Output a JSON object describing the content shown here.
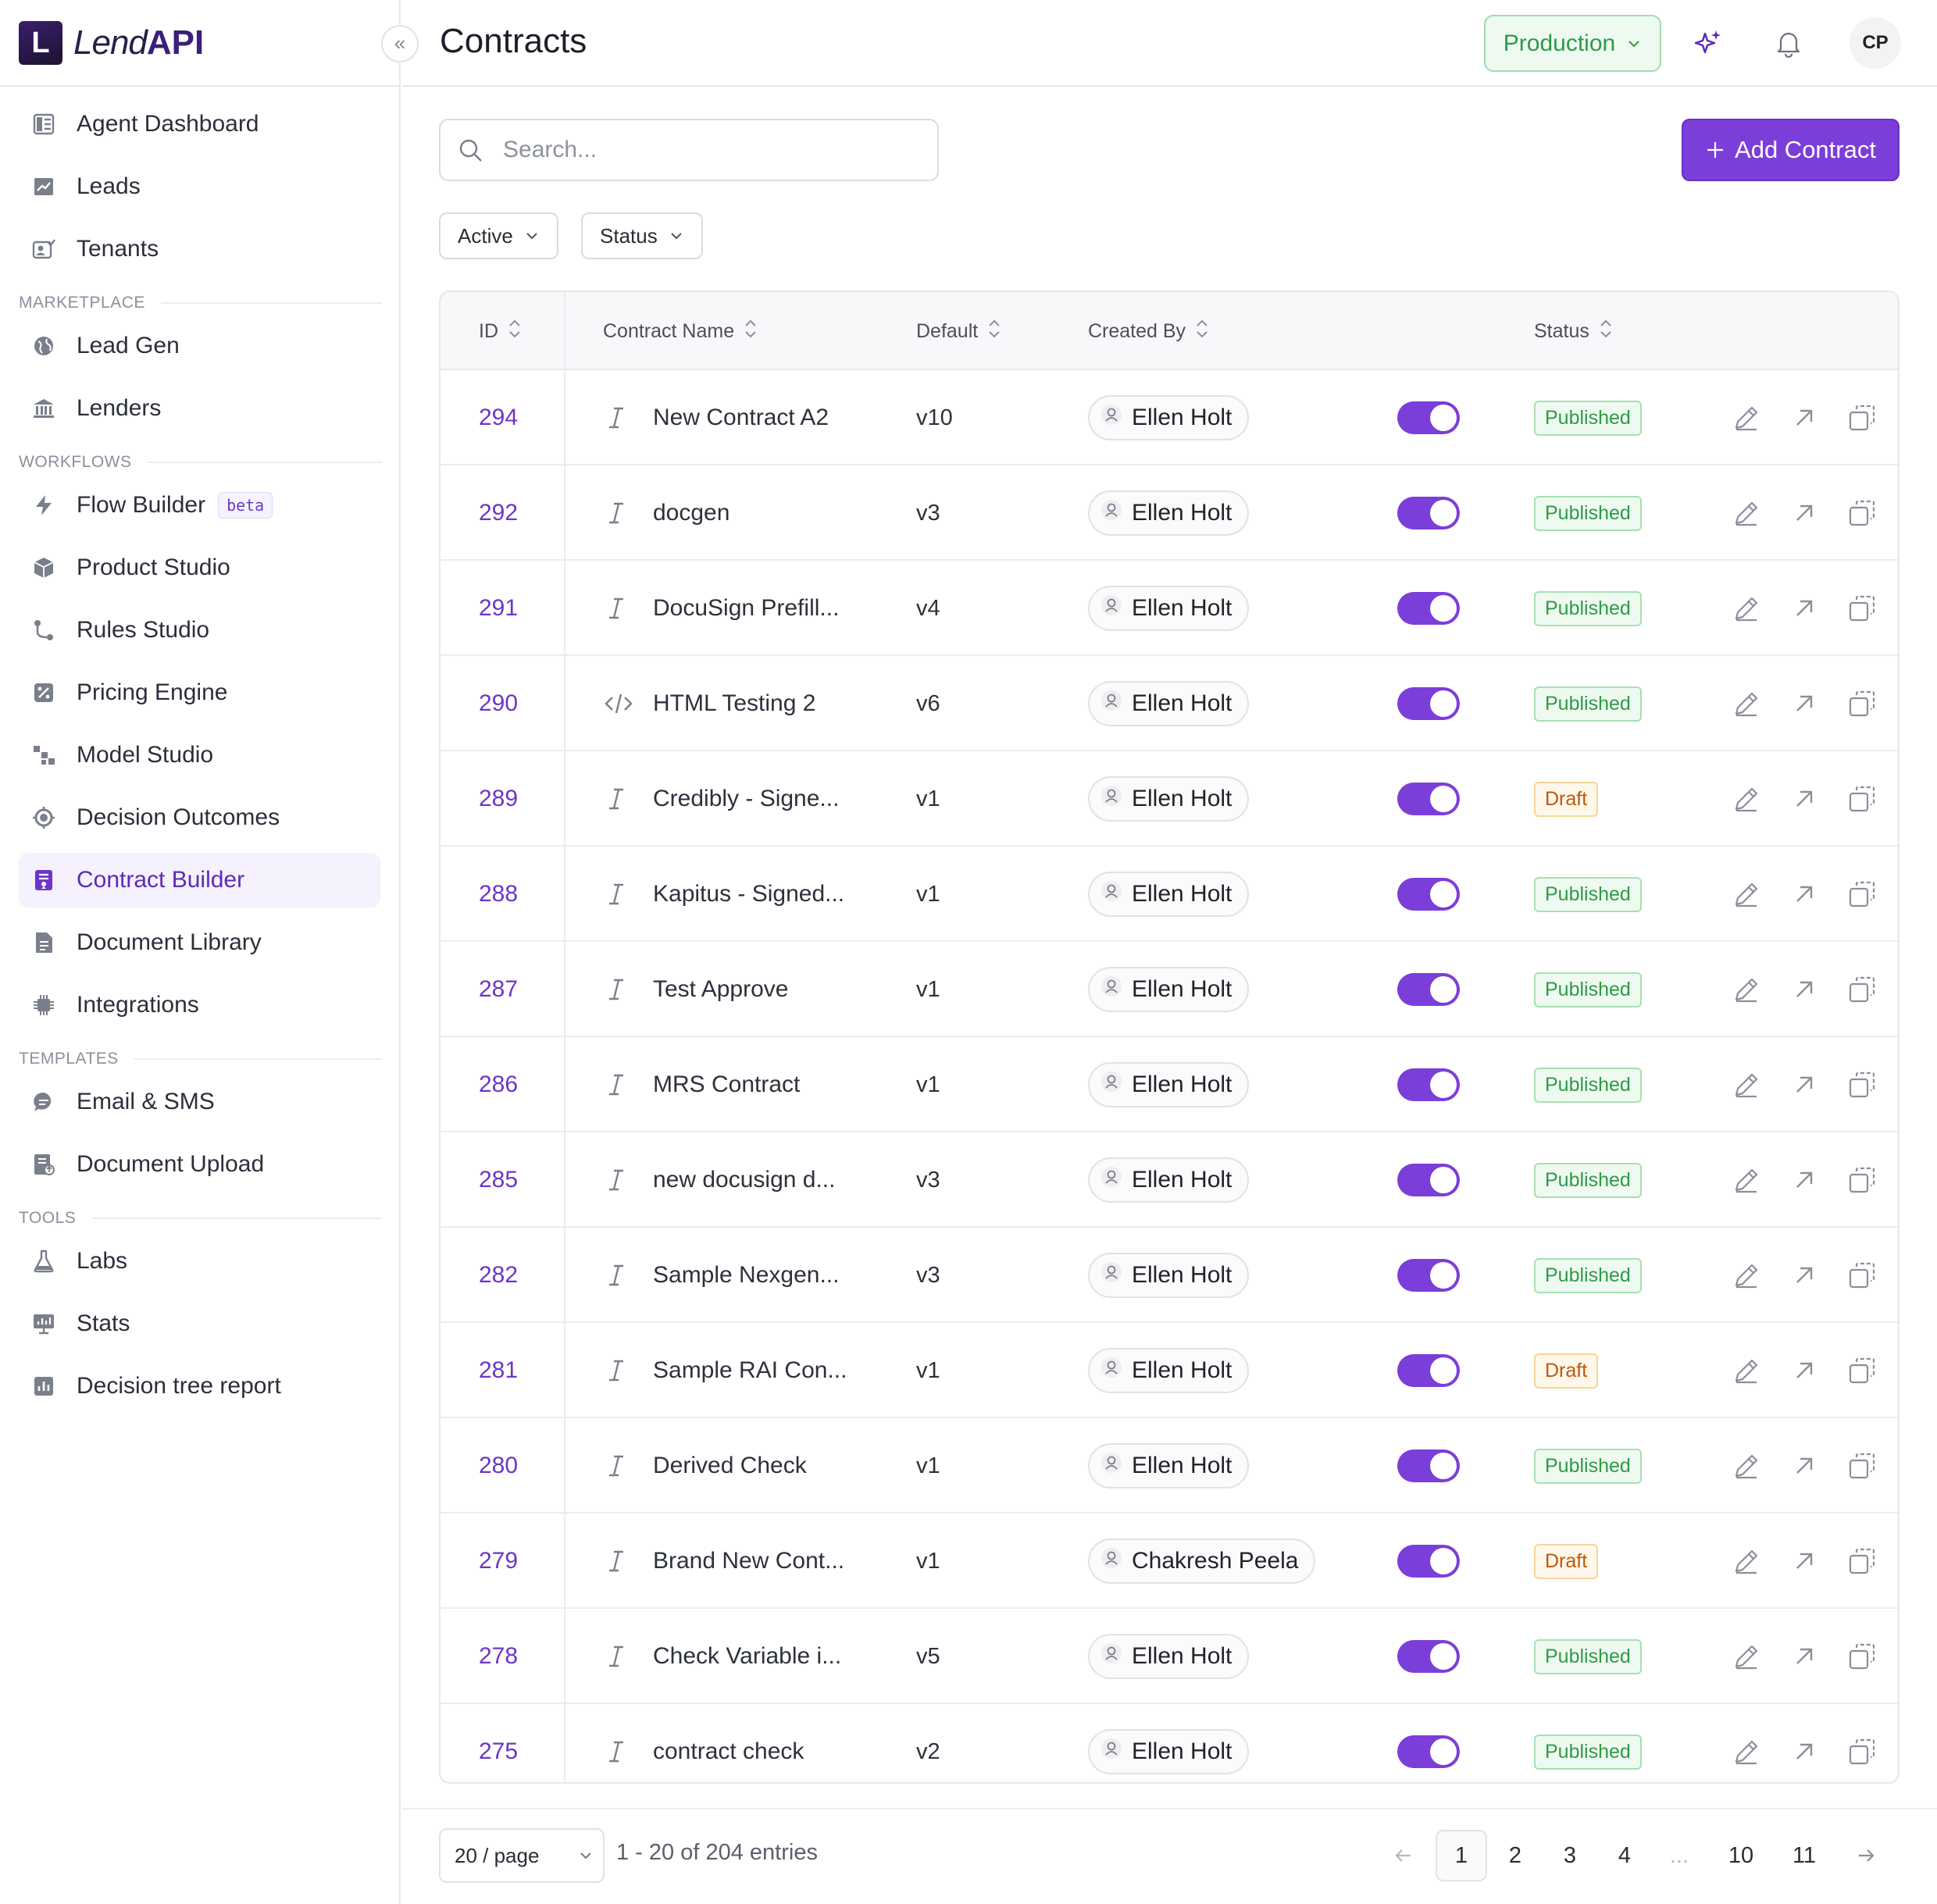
{
  "brand": {
    "logo_letter": "L",
    "name_part1": "Lend",
    "name_part2": "API"
  },
  "sidebar": {
    "top_items": [
      {
        "label": "Agent Dashboard",
        "icon": "dashboard-icon"
      },
      {
        "label": "Leads",
        "icon": "leads-chart-icon"
      },
      {
        "label": "Tenants",
        "icon": "tenants-icon"
      }
    ],
    "sections": [
      {
        "label": "MARKETPLACE",
        "items": [
          {
            "label": "Lead Gen",
            "icon": "globe-icon"
          },
          {
            "label": "Lenders",
            "icon": "bank-icon"
          }
        ]
      },
      {
        "label": "WORKFLOWS",
        "items": [
          {
            "label": "Flow Builder",
            "icon": "lightning-icon",
            "badge": "beta"
          },
          {
            "label": "Product Studio",
            "icon": "box-icon"
          },
          {
            "label": "Rules Studio",
            "icon": "branch-icon"
          },
          {
            "label": "Pricing Engine",
            "icon": "percent-icon"
          },
          {
            "label": "Model Studio",
            "icon": "model-icon"
          },
          {
            "label": "Decision Outcomes",
            "icon": "target-icon"
          },
          {
            "label": "Contract Builder",
            "icon": "contract-icon",
            "active": true
          },
          {
            "label": "Document Library",
            "icon": "document-icon"
          },
          {
            "label": "Integrations",
            "icon": "chip-icon"
          }
        ]
      },
      {
        "label": "TEMPLATES",
        "items": [
          {
            "label": "Email & SMS",
            "icon": "chat-icon"
          },
          {
            "label": "Document Upload",
            "icon": "upload-doc-icon"
          }
        ]
      },
      {
        "label": "TOOLS",
        "items": [
          {
            "label": "Labs",
            "icon": "flask-icon"
          },
          {
            "label": "Stats",
            "icon": "stats-icon"
          },
          {
            "label": "Decision tree report",
            "icon": "report-icon"
          }
        ]
      }
    ]
  },
  "header": {
    "title": "Contracts",
    "environment": "Production",
    "avatar_initials": "CP"
  },
  "toolbar": {
    "search_placeholder": "Search...",
    "add_label": "Add Contract",
    "filters": [
      "Active",
      "Status"
    ]
  },
  "table": {
    "columns": [
      "ID",
      "Contract Name",
      "Default",
      "Created By",
      "Status"
    ],
    "rows": [
      {
        "id": "294",
        "type": "text",
        "name": "New Contract A2",
        "default": "v10",
        "created_by": "Ellen Holt",
        "enabled": true,
        "status": "Published"
      },
      {
        "id": "292",
        "type": "text",
        "name": "docgen",
        "default": "v3",
        "created_by": "Ellen Holt",
        "enabled": true,
        "status": "Published"
      },
      {
        "id": "291",
        "type": "text",
        "name": "DocuSign Prefill...",
        "default": "v4",
        "created_by": "Ellen Holt",
        "enabled": true,
        "status": "Published"
      },
      {
        "id": "290",
        "type": "html",
        "name": "HTML Testing 2",
        "default": "v6",
        "created_by": "Ellen Holt",
        "enabled": true,
        "status": "Published"
      },
      {
        "id": "289",
        "type": "text",
        "name": "Credibly - Signe...",
        "default": "v1",
        "created_by": "Ellen Holt",
        "enabled": true,
        "status": "Draft"
      },
      {
        "id": "288",
        "type": "text",
        "name": "Kapitus - Signed...",
        "default": "v1",
        "created_by": "Ellen Holt",
        "enabled": true,
        "status": "Published"
      },
      {
        "id": "287",
        "type": "text",
        "name": "Test Approve",
        "default": "v1",
        "created_by": "Ellen Holt",
        "enabled": true,
        "status": "Published"
      },
      {
        "id": "286",
        "type": "text",
        "name": "MRS Contract",
        "default": "v1",
        "created_by": "Ellen Holt",
        "enabled": true,
        "status": "Published"
      },
      {
        "id": "285",
        "type": "text",
        "name": "new docusign d...",
        "default": "v3",
        "created_by": "Ellen Holt",
        "enabled": true,
        "status": "Published"
      },
      {
        "id": "282",
        "type": "text",
        "name": "Sample Nexgen...",
        "default": "v3",
        "created_by": "Ellen Holt",
        "enabled": true,
        "status": "Published"
      },
      {
        "id": "281",
        "type": "text",
        "name": "Sample RAI Con...",
        "default": "v1",
        "created_by": "Ellen Holt",
        "enabled": true,
        "status": "Draft"
      },
      {
        "id": "280",
        "type": "text",
        "name": "Derived Check",
        "default": "v1",
        "created_by": "Ellen Holt",
        "enabled": true,
        "status": "Published"
      },
      {
        "id": "279",
        "type": "text",
        "name": "Brand New Cont...",
        "default": "v1",
        "created_by": "Chakresh Peela",
        "enabled": true,
        "status": "Draft"
      },
      {
        "id": "278",
        "type": "text",
        "name": "Check Variable i...",
        "default": "v5",
        "created_by": "Ellen Holt",
        "enabled": true,
        "status": "Published"
      },
      {
        "id": "275",
        "type": "text",
        "name": "contract check",
        "default": "v2",
        "created_by": "Ellen Holt",
        "enabled": true,
        "status": "Published"
      }
    ]
  },
  "pagination": {
    "per_page": "20 / page",
    "summary": "1 - 20 of 204 entries",
    "pages": [
      "1",
      "2",
      "3",
      "4",
      "...",
      "10",
      "11"
    ],
    "current": "1"
  },
  "colors": {
    "accent": "#7c3ed9",
    "published": "#2f9a48",
    "draft": "#c0560c",
    "env": "#2f9a48"
  }
}
